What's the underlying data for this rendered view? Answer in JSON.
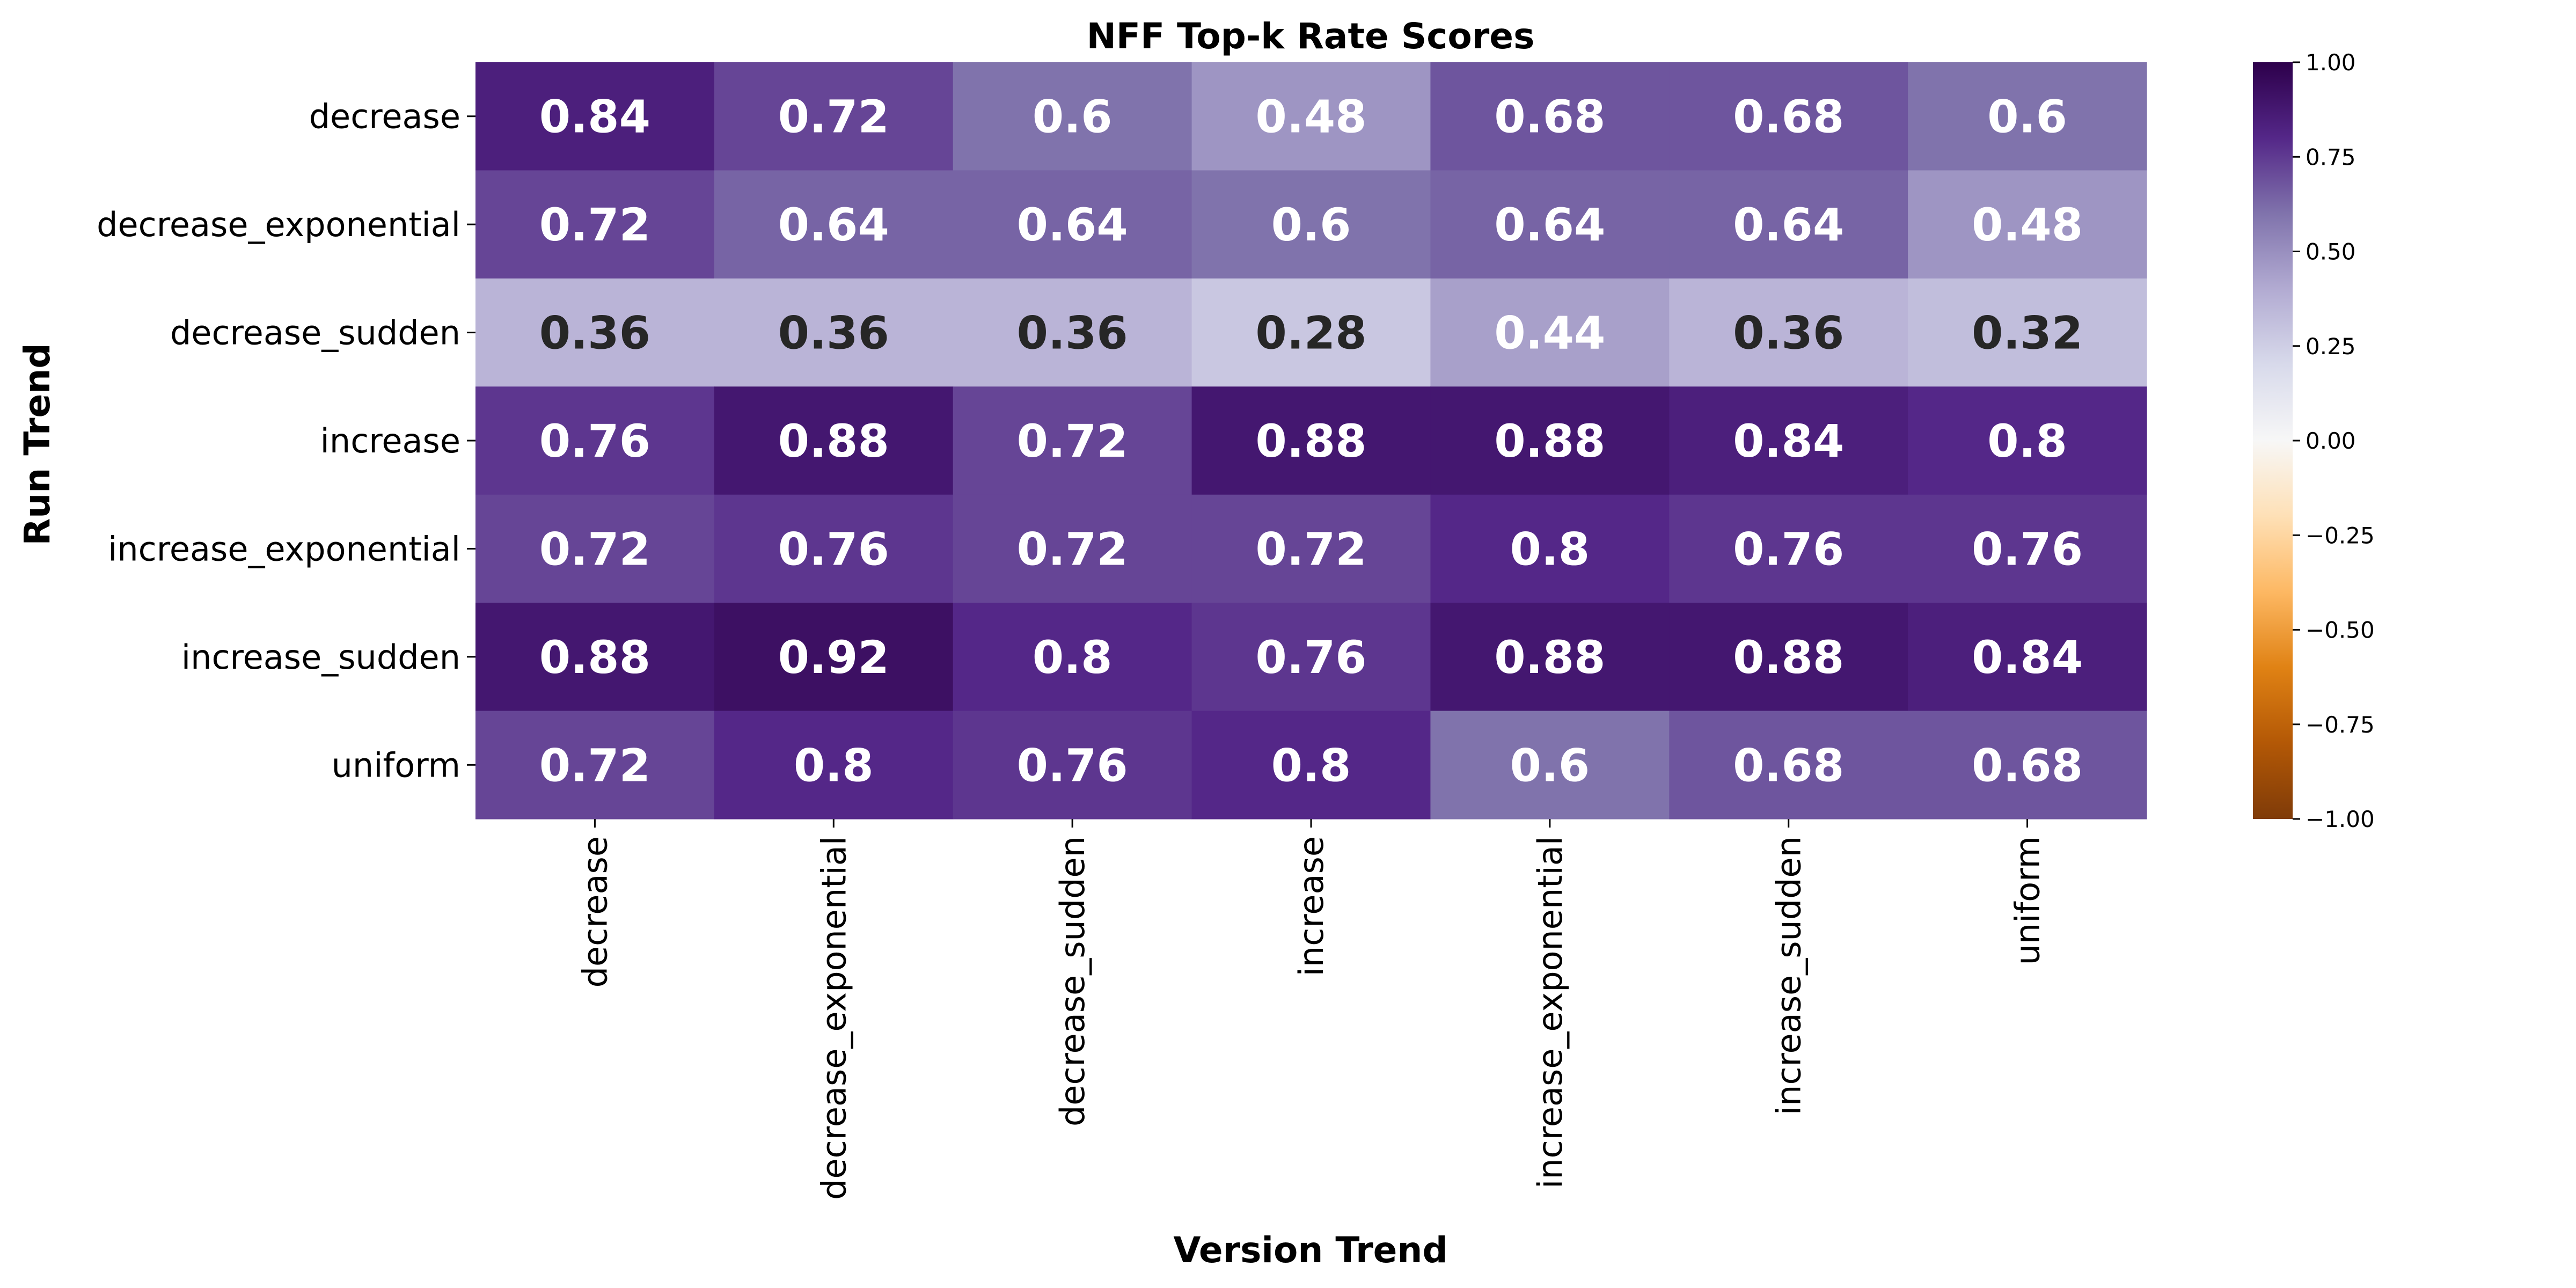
{
  "chart_data": {
    "type": "heatmap",
    "title": "NFF Top-k Rate Scores",
    "xlabel": "Version Trend",
    "ylabel": "Run Trend",
    "x_categories": [
      "decrease",
      "decrease_exponential",
      "decrease_sudden",
      "increase",
      "increase_exponential",
      "increase_sudden",
      "uniform"
    ],
    "y_categories": [
      "decrease",
      "decrease_exponential",
      "decrease_sudden",
      "increase",
      "increase_exponential",
      "increase_sudden",
      "uniform"
    ],
    "values": [
      [
        0.84,
        0.72,
        0.6,
        0.48,
        0.68,
        0.68,
        0.6
      ],
      [
        0.72,
        0.64,
        0.64,
        0.6,
        0.64,
        0.64,
        0.48
      ],
      [
        0.36,
        0.36,
        0.36,
        0.28,
        0.44,
        0.36,
        0.32
      ],
      [
        0.76,
        0.88,
        0.72,
        0.88,
        0.88,
        0.84,
        0.8
      ],
      [
        0.72,
        0.76,
        0.72,
        0.72,
        0.8,
        0.76,
        0.76
      ],
      [
        0.88,
        0.92,
        0.8,
        0.76,
        0.88,
        0.88,
        0.84
      ],
      [
        0.72,
        0.8,
        0.76,
        0.8,
        0.6,
        0.68,
        0.68
      ]
    ],
    "vmin": -1.0,
    "vmax": 1.0,
    "colormap": "PuOr",
    "colorbar": {
      "ticks": [
        1.0,
        0.75,
        0.5,
        0.25,
        0.0,
        -0.25,
        -0.5,
        -0.75,
        -1.0
      ],
      "tick_labels": [
        "1.00",
        "0.75",
        "0.50",
        "0.25",
        "0.00",
        "−0.25",
        "−0.50",
        "−0.75",
        "−1.00"
      ]
    }
  }
}
